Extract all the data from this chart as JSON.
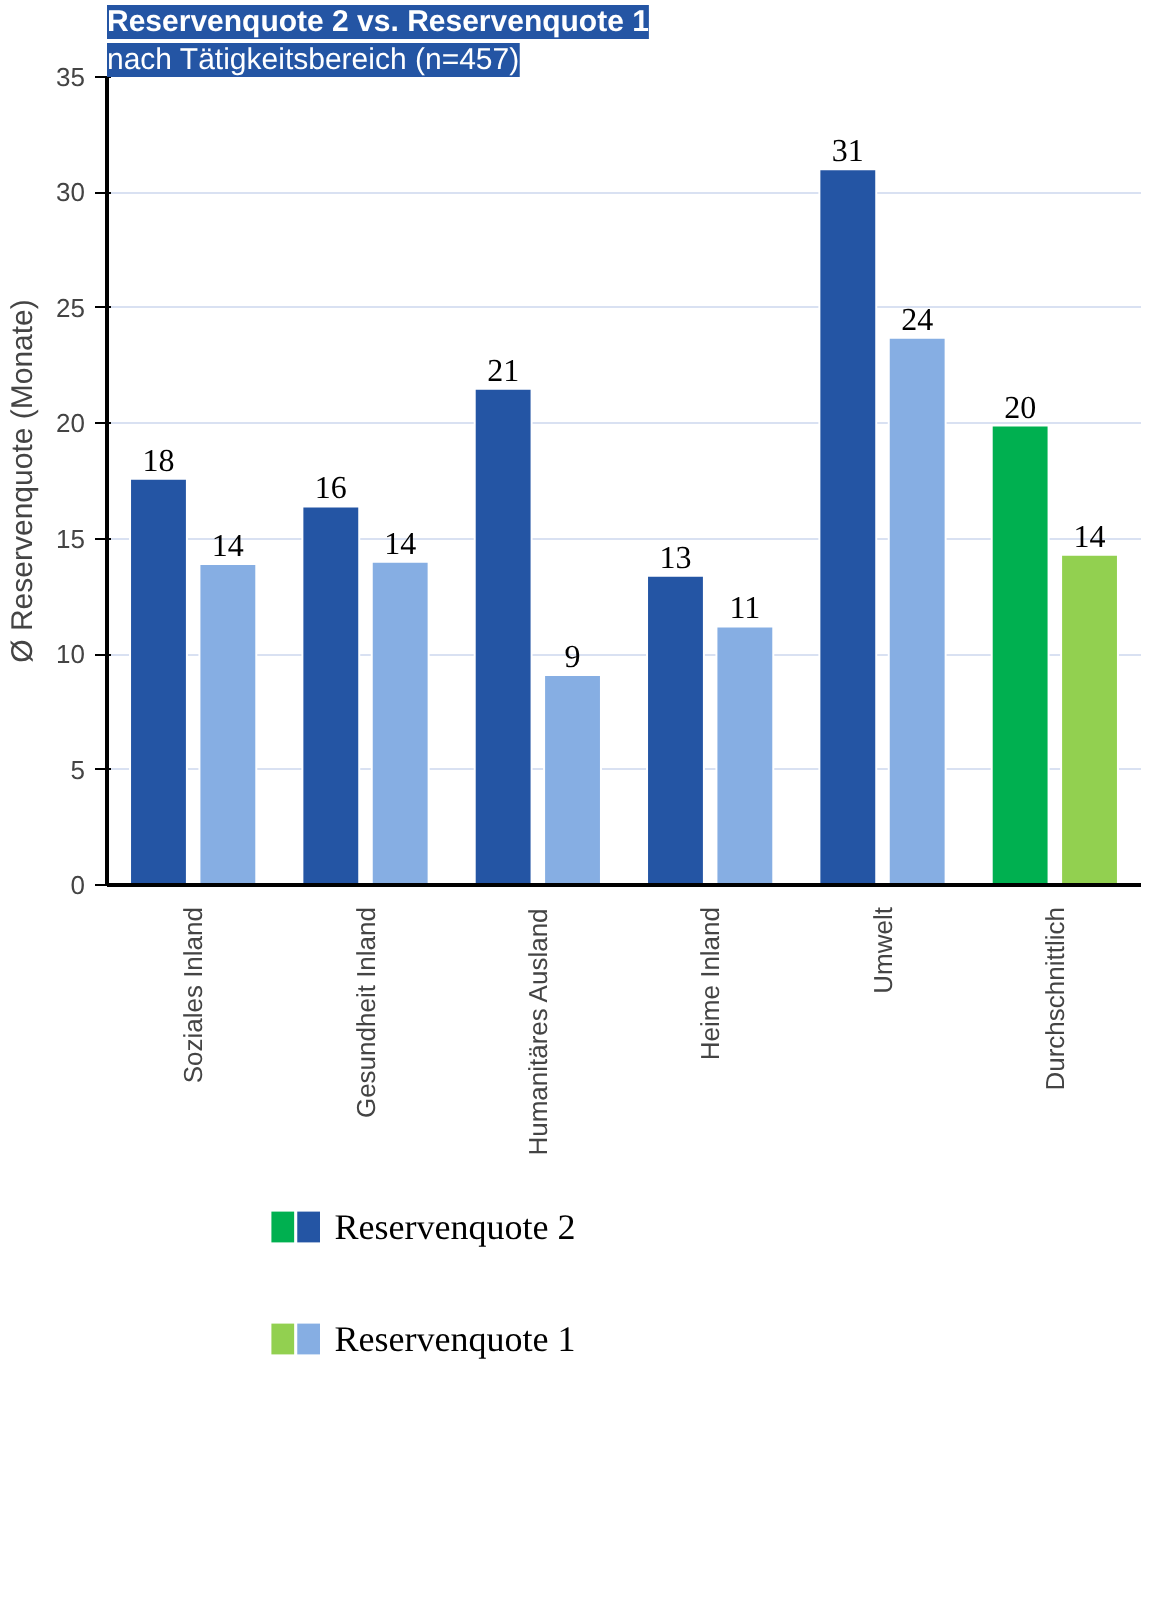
{
  "chart_data": {
    "type": "bar",
    "title": "Reservenquote 2 vs. Reservenquote 1",
    "subtitle": "nach Tätigkeitsbereich (n=457)",
    "ylabel": "Ø Reservenquote (Monate)",
    "categories": [
      "Soziales Inland",
      "Gesundheit Inland",
      "Humanitäres Ausland",
      "Heime Inland",
      "Umwelt",
      "Durchschnittlich"
    ],
    "series": [
      {
        "name": "Reservenquote 2",
        "colors": [
          "#2455a4",
          "#2455a4",
          "#2455a4",
          "#2455a4",
          "#2455a4",
          "#00b050"
        ],
        "values": [
          17.6,
          16.4,
          21.5,
          13.4,
          31.0,
          19.9
        ],
        "value_labels": [
          "18",
          "16",
          "21",
          "13",
          "31",
          "20"
        ]
      },
      {
        "name": "Reservenquote 1",
        "colors": [
          "#86aee3",
          "#86aee3",
          "#86aee3",
          "#86aee3",
          "#86aee3",
          "#92d050"
        ],
        "values": [
          13.9,
          14.0,
          9.1,
          11.2,
          23.7,
          14.3
        ],
        "value_labels": [
          "14",
          "14",
          "9",
          "11",
          "24",
          "14"
        ]
      }
    ],
    "ylim": [
      0,
      35
    ],
    "yticks": [
      0,
      5,
      10,
      15,
      20,
      25,
      30,
      35
    ],
    "grid": "y",
    "legend": "bottom left"
  }
}
